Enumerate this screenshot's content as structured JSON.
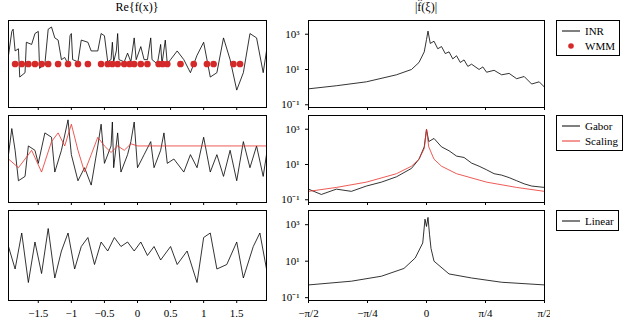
{
  "chart_data": [
    {
      "type": "line",
      "title": "Re{f(x)}",
      "legend": "right",
      "tick_labels": false,
      "xlim": [
        -1.95,
        1.95
      ],
      "xticks": [
        -1.5,
        -1,
        -0.5,
        0,
        0.5,
        1,
        1.5
      ],
      "ylim": [
        -1,
        1
      ],
      "series": [
        {
          "name": "INR",
          "color": "#000000",
          "marker": "none",
          "x": [
            -1.95,
            -1.9,
            -1.88,
            -1.85,
            -1.8,
            -1.78,
            -1.7,
            -1.68,
            -1.6,
            -1.55,
            -1.5,
            -1.48,
            -1.4,
            -1.35,
            -1.3,
            -1.25,
            -1.2,
            -1.15,
            -1.1,
            -1.05,
            -1.02,
            -1.0,
            -0.98,
            -0.9,
            -0.85,
            -0.75,
            -0.7,
            -0.6,
            -0.55,
            -0.5,
            -0.45,
            -0.4,
            -0.38,
            -0.36,
            -0.32,
            -0.3,
            -0.28,
            -0.2,
            -0.15,
            -0.1,
            -0.05,
            -0.02,
            0.05,
            0.1,
            0.15,
            0.2,
            0.22,
            0.3,
            0.35,
            0.37,
            0.42,
            0.45,
            0.5,
            0.6,
            0.7,
            0.8,
            0.9,
            1.0,
            1.1,
            1.2,
            1.3,
            1.4,
            1.5,
            1.6,
            1.7,
            1.8,
            1.9,
            1.95
          ],
          "values": [
            0.2,
            0.75,
            0.8,
            0.3,
            0.35,
            -0.3,
            -0.2,
            0.5,
            0.45,
            0.7,
            0.75,
            -0.1,
            0.0,
            0.8,
            0.85,
            0.6,
            0.55,
            0.1,
            0.15,
            0.0,
            0.65,
            0.7,
            0.1,
            0.05,
            0.55,
            0.5,
            0.3,
            0.3,
            0.7,
            0.65,
            0.05,
            0.1,
            0.5,
            0.05,
            0.3,
            0.7,
            0.1,
            0.05,
            0.25,
            0.05,
            0.6,
            0.1,
            0.4,
            0.1,
            0.1,
            0.6,
            0.1,
            0.0,
            0.45,
            0.0,
            0.55,
            0.0,
            0.1,
            0.3,
            0.1,
            -0.2,
            0.2,
            0.5,
            -0.3,
            -0.2,
            0.6,
            0.1,
            -0.6,
            -0.2,
            0.7,
            0.6,
            -0.2,
            0.3
          ]
        },
        {
          "name": "WMM",
          "color": "#d42a2a",
          "marker": "dot",
          "x": [
            -1.85,
            -1.75,
            -1.65,
            -1.55,
            -1.45,
            -1.35,
            -1.2,
            -1.05,
            -0.9,
            -0.75,
            -0.55,
            -0.45,
            -0.38,
            -0.3,
            -0.2,
            -0.12,
            -0.05,
            0.05,
            0.15,
            0.32,
            0.38,
            0.45,
            0.65,
            0.85,
            1.05,
            1.15,
            1.45,
            1.55
          ],
          "values": [
            0,
            0,
            0,
            0,
            0,
            0,
            0,
            0,
            0,
            0,
            0,
            0,
            0,
            0,
            0,
            0,
            0,
            0,
            0,
            0,
            0,
            0,
            0,
            0,
            0,
            0,
            0,
            0
          ]
        }
      ]
    },
    {
      "type": "line",
      "title": "|f̂(ξ)|",
      "log": "y",
      "tick_labels": "y",
      "xlim": [
        -1.5708,
        1.5708
      ],
      "xticks": [
        {
          "value": -1.5708,
          "label": "−π/2"
        },
        {
          "value": -0.7854,
          "label": "−π/4"
        },
        0,
        {
          "value": 0.7854,
          "label": "π/4"
        },
        {
          "value": 1.5708,
          "label": "π/2"
        }
      ],
      "ylim": [
        0.07,
        6000
      ],
      "yticks": [
        {
          "value": 0.1,
          "label": "10⁻¹"
        },
        {
          "value": 10,
          "label": "10¹"
        },
        {
          "value": 1000,
          "label": "10³"
        }
      ],
      "series": [
        {
          "name": "INR",
          "color": "#000000",
          "marker": "none",
          "x": [
            -1.5708,
            -1.2,
            -0.8,
            -0.4,
            -0.2,
            -0.1,
            -0.03,
            0,
            0.02,
            0.05,
            0.1,
            0.15,
            0.2,
            0.25,
            0.3,
            0.35,
            0.4,
            0.45,
            0.5,
            0.55,
            0.6,
            0.7,
            0.75,
            0.8,
            0.9,
            1.0,
            1.1,
            1.2,
            1.3,
            1.4,
            1.5,
            1.5708
          ],
          "values": [
            0.8,
            1.2,
            2,
            5,
            10,
            25,
            100,
            500,
            1500,
            300,
            400,
            150,
            200,
            80,
            100,
            40,
            60,
            25,
            35,
            15,
            20,
            10,
            14,
            7,
            9,
            5,
            6,
            3,
            4,
            1.5,
            2,
            1
          ]
        }
      ]
    },
    {
      "type": "line",
      "legend": "right",
      "tick_labels": false,
      "xlim": [
        -1.95,
        1.95
      ],
      "xticks": [
        -1.5,
        -1,
        -0.5,
        0,
        0.5,
        1,
        1.5
      ],
      "ylim": [
        -1,
        1
      ],
      "series": [
        {
          "name": "Gabor",
          "color": "#000000",
          "marker": "none",
          "x": [
            -1.95,
            -1.9,
            -1.85,
            -1.8,
            -1.7,
            -1.65,
            -1.55,
            -1.5,
            -1.4,
            -1.3,
            -1.25,
            -1.15,
            -1.05,
            -1.0,
            -0.9,
            -0.8,
            -0.7,
            -0.6,
            -0.55,
            -0.5,
            -0.4,
            -0.38,
            -0.36,
            -0.3,
            -0.25,
            -0.15,
            -0.1,
            -0.05,
            0,
            0.1,
            0.2,
            0.25,
            0.35,
            0.4,
            0.45,
            0.55,
            0.7,
            0.8,
            0.9,
            1.0,
            1.1,
            1.2,
            1.3,
            1.4,
            1.5,
            1.6,
            1.7,
            1.8,
            1.9,
            1.95
          ],
          "values": [
            0.1,
            0.7,
            0.2,
            -0.5,
            -0.4,
            0.3,
            0.2,
            -0.1,
            0.6,
            0.5,
            -0.3,
            0.2,
            0.9,
            0.1,
            -0.5,
            -0.2,
            -0.6,
            0.3,
            0.8,
            -0.1,
            0.3,
            0.85,
            -0.2,
            0.6,
            -0.3,
            0.1,
            0.4,
            0.85,
            -0.2,
            0.1,
            0.4,
            -0.2,
            0.2,
            0.6,
            -0.1,
            0.0,
            -0.3,
            0.1,
            -0.2,
            0.5,
            -0.3,
            0.1,
            -0.4,
            0.2,
            -0.5,
            0.4,
            -0.2,
            0.3,
            -0.4,
            0.1
          ]
        },
        {
          "name": "Scaling",
          "color": "#e8312b",
          "marker": "none",
          "x": [
            -1.95,
            -1.8,
            -1.6,
            -1.45,
            -1.3,
            -1.2,
            -1.1,
            -1.0,
            -0.9,
            -0.8,
            -0.7,
            -0.6,
            -0.5,
            -0.4,
            -0.3,
            -0.2,
            -0.1,
            0,
            0.2,
            0.4,
            1.95
          ],
          "values": [
            0,
            -0.2,
            0.2,
            -0.3,
            0.4,
            0.6,
            0.3,
            0.8,
            0.2,
            -0.3,
            0.1,
            0.5,
            0.3,
            0.15,
            0.3,
            0.2,
            0.35,
            0.3,
            0.3,
            0.3,
            0.3
          ]
        }
      ]
    },
    {
      "type": "line",
      "log": "y",
      "tick_labels": "y",
      "xlim": [
        -1.5708,
        1.5708
      ],
      "xticks": [
        {
          "value": -1.5708,
          "label": "−π/2"
        },
        {
          "value": -0.7854,
          "label": "−π/4"
        },
        0,
        {
          "value": 0.7854,
          "label": "π/4"
        },
        {
          "value": 1.5708,
          "label": "π/2"
        }
      ],
      "ylim": [
        0.07,
        6000
      ],
      "yticks": [
        {
          "value": 0.1,
          "label": "10⁻¹"
        },
        {
          "value": 10,
          "label": "10¹"
        },
        {
          "value": 1000,
          "label": "10³"
        }
      ],
      "series": [
        {
          "name": "Gabor",
          "color": "#000000",
          "marker": "none",
          "x": [
            -1.5708,
            -1.4,
            -1.2,
            -1.0,
            -0.8,
            -0.6,
            -0.4,
            -0.2,
            -0.1,
            -0.03,
            0,
            0.03,
            0.1,
            0.2,
            0.3,
            0.4,
            0.5,
            0.6,
            0.7,
            0.8,
            0.9,
            1.0,
            1.1,
            1.2,
            1.3,
            1.4,
            1.5708
          ],
          "values": [
            0.4,
            0.2,
            0.4,
            0.3,
            0.6,
            1,
            2,
            6,
            20,
            100,
            1000,
            200,
            300,
            100,
            60,
            30,
            25,
            12,
            8,
            5,
            3,
            2.5,
            1.8,
            1.2,
            0.8,
            0.6,
            0.5
          ]
        },
        {
          "name": "Scaling",
          "color": "#e8312b",
          "marker": "none",
          "x": [
            -1.5708,
            -1.2,
            -0.8,
            -0.4,
            -0.2,
            -0.1,
            -0.03,
            0,
            0.03,
            0.1,
            0.2,
            0.4,
            0.8,
            1.2,
            1.5708
          ],
          "values": [
            0.3,
            0.5,
            1,
            3,
            8,
            20,
            80,
            1000,
            100,
            20,
            8,
            3,
            1,
            0.5,
            0.3
          ]
        }
      ]
    },
    {
      "type": "line",
      "legend": "right",
      "tick_labels": "x",
      "xlim": [
        -1.95,
        1.95
      ],
      "xticks": [
        -1.5,
        -1,
        -0.5,
        0,
        0.5,
        1,
        1.5
      ],
      "ylim": [
        -1,
        1
      ],
      "series": [
        {
          "name": "Linear",
          "color": "#000000",
          "marker": "none",
          "x": [
            -1.95,
            -1.85,
            -1.75,
            -1.65,
            -1.55,
            -1.45,
            -1.35,
            -1.25,
            -1.15,
            -1.05,
            -0.95,
            -0.85,
            -0.75,
            -0.65,
            -0.55,
            -0.45,
            -0.35,
            -0.25,
            -0.15,
            -0.05,
            0.05,
            0.15,
            0.25,
            0.35,
            0.5,
            0.6,
            0.75,
            0.9,
            1.0,
            1.1,
            1.2,
            1.35,
            1.5,
            1.6,
            1.75,
            1.85,
            1.95
          ],
          "values": [
            0.2,
            -0.3,
            0.5,
            -0.6,
            0.3,
            -0.4,
            0.6,
            -0.5,
            0.1,
            0.5,
            -0.3,
            0.2,
            0.4,
            -0.2,
            0.3,
            0.1,
            0.4,
            0.2,
            0.3,
            0.1,
            0.3,
            0.0,
            0.2,
            -0.1,
            0.2,
            -0.2,
            0.1,
            -0.6,
            0.4,
            0.5,
            -0.3,
            -0.2,
            0.3,
            -0.5,
            0.2,
            0.5,
            -0.3
          ]
        }
      ]
    },
    {
      "type": "line",
      "log": "y",
      "tick_labels": true,
      "xlim": [
        -1.5708,
        1.5708
      ],
      "xticks": [
        {
          "value": -1.5708,
          "label": "−π/2"
        },
        {
          "value": -0.7854,
          "label": "−π/4"
        },
        0,
        {
          "value": 0.7854,
          "label": "π/4"
        },
        {
          "value": 1.5708,
          "label": "π/2"
        }
      ],
      "ylim": [
        0.07,
        6000
      ],
      "yticks": [
        {
          "value": 0.1,
          "label": "10⁻¹"
        },
        {
          "value": 10,
          "label": "10¹"
        },
        {
          "value": 1000,
          "label": "10³"
        }
      ],
      "series": [
        {
          "name": "Linear",
          "color": "#000000",
          "marker": "none",
          "x": [
            -1.5708,
            -1.0,
            -0.6,
            -0.3,
            -0.15,
            -0.05,
            -0.02,
            0,
            0.02,
            0.04,
            0.06,
            0.1,
            0.3,
            0.6,
            1.0,
            1.5708
          ],
          "values": [
            0.5,
            0.8,
            1.5,
            4,
            15,
            100,
            2000,
            800,
            2500,
            300,
            50,
            10,
            2,
            1.2,
            0.7,
            0.5
          ]
        }
      ]
    }
  ]
}
